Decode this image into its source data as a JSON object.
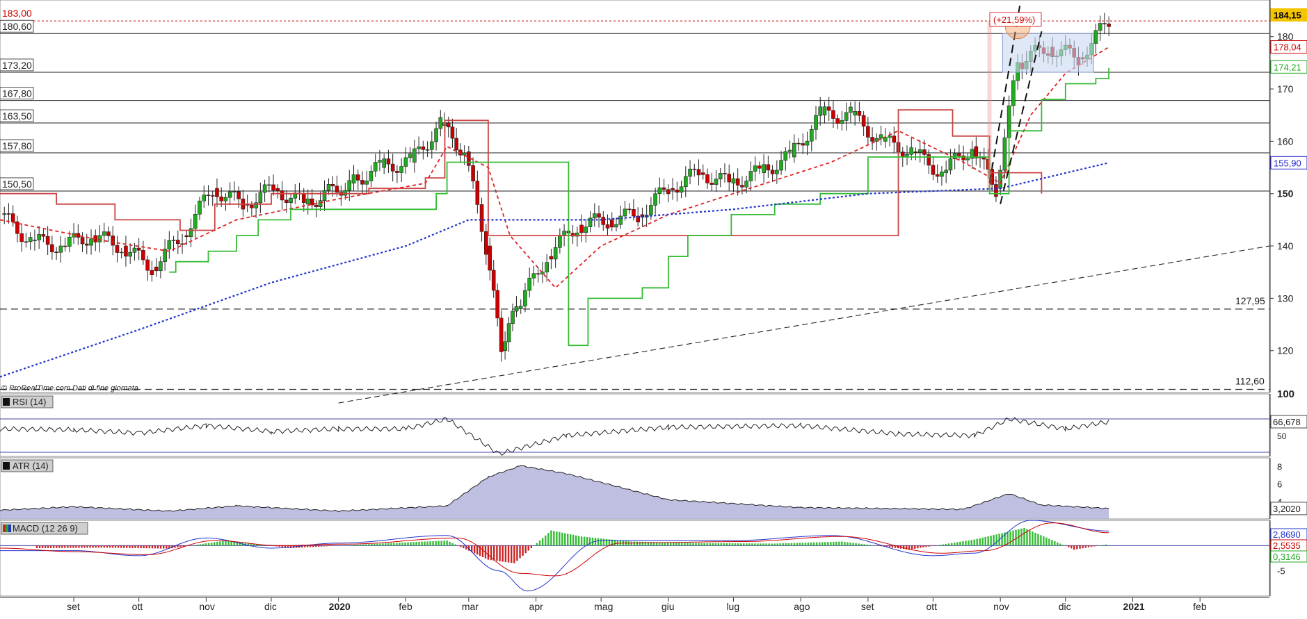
{
  "chart_data": [
    {
      "type": "line",
      "title": "",
      "source_note": "© ProRealTime.com  Dati di fine giornata",
      "ylim": [
        112,
        187
      ],
      "yticks": [
        {
          "value": 180,
          "label": "180"
        },
        {
          "value": 170,
          "label": "170"
        },
        {
          "value": 160,
          "label": "160"
        },
        {
          "value": 150,
          "label": "150",
          "bold": true
        },
        {
          "value": 140,
          "label": "140"
        },
        {
          "value": 130,
          "label": "130"
        },
        {
          "value": 120,
          "label": "120"
        }
      ],
      "xaxis": {
        "range": [
          "2019-07-29",
          "2021-03-05"
        ],
        "ticks": [
          {
            "date": "2019-09-01",
            "label": "set"
          },
          {
            "date": "2019-10-01",
            "label": "ott"
          },
          {
            "date": "2019-11-01",
            "label": "nov"
          },
          {
            "date": "2019-12-01",
            "label": "dic"
          },
          {
            "date": "2020-01-01",
            "label": "2020",
            "bold": true
          },
          {
            "date": "2020-02-01",
            "label": "feb"
          },
          {
            "date": "2020-03-01",
            "label": "mar"
          },
          {
            "date": "2020-04-01",
            "label": "apr"
          },
          {
            "date": "2020-05-01",
            "label": "mag"
          },
          {
            "date": "2020-06-01",
            "label": "giu"
          },
          {
            "date": "2020-07-01",
            "label": "lug"
          },
          {
            "date": "2020-08-01",
            "label": "ago"
          },
          {
            "date": "2020-09-01",
            "label": "set"
          },
          {
            "date": "2020-10-01",
            "label": "ott"
          },
          {
            "date": "2020-11-01",
            "label": "nov"
          },
          {
            "date": "2020-12-01",
            "label": "dic"
          },
          {
            "date": "2021-01-01",
            "label": "2021",
            "bold": true
          },
          {
            "date": "2021-02-01",
            "label": "feb"
          }
        ]
      },
      "horizontal_levels": [
        {
          "value": 180.6,
          "label": "180,60",
          "style": "solid"
        },
        {
          "value": 173.2,
          "label": "173,20",
          "style": "solid"
        },
        {
          "value": 167.8,
          "label": "167,80",
          "style": "solid"
        },
        {
          "value": 163.5,
          "label": "163,50",
          "style": "solid"
        },
        {
          "value": 157.8,
          "label": "157,80",
          "style": "solid"
        },
        {
          "value": 150.5,
          "label": "150,50",
          "style": "solid"
        },
        {
          "value": 183.0,
          "label": "183,00",
          "style": "dotted-red",
          "color": "#cc0000"
        },
        {
          "value": 127.95,
          "label": "127,95",
          "style": "dashed",
          "label_side": "right"
        },
        {
          "value": 112.6,
          "label": "112,60",
          "style": "dashed",
          "label_side": "right"
        }
      ],
      "price_tags": [
        {
          "value": 184.15,
          "label": "184,15",
          "color": "#f5c400",
          "text_color": "#000000"
        },
        {
          "value": 178.04,
          "label": "178,04",
          "color": "#cc0000"
        },
        {
          "value": 174.21,
          "label": "174,21",
          "color": "#22aa22"
        },
        {
          "value": 155.9,
          "label": "155,90",
          "color": "#2222cc"
        }
      ],
      "annotation": {
        "label": "(+21,59%)",
        "color": "#cc0000"
      },
      "series": [
        {
          "style": "candlestick",
          "color_up": "#22aa22",
          "color_down": "#cc0000",
          "x": [
            "2019-07-29",
            "2019-08-12",
            "2019-08-26",
            "2019-09-09",
            "2019-09-23",
            "2019-10-07",
            "2019-10-21",
            "2019-11-04",
            "2019-11-18",
            "2019-12-02",
            "2019-12-16",
            "2020-01-06",
            "2020-01-20",
            "2020-02-03",
            "2020-02-17",
            "2020-02-28",
            "2020-03-09",
            "2020-03-16",
            "2020-03-23",
            "2020-04-06",
            "2020-04-20",
            "2020-05-04",
            "2020-05-18",
            "2020-06-01",
            "2020-06-15",
            "2020-06-29",
            "2020-07-13",
            "2020-07-27",
            "2020-08-10",
            "2020-08-24",
            "2020-09-07",
            "2020-09-21",
            "2020-10-05",
            "2020-10-19",
            "2020-10-30",
            "2020-11-09",
            "2020-11-23",
            "2020-12-07",
            "2020-12-21"
          ],
          "values": [
            146,
            141,
            140,
            142,
            140,
            136,
            142,
            151,
            148,
            151,
            148,
            152,
            155,
            156,
            163,
            158,
            140,
            120,
            128,
            138,
            144,
            145,
            146,
            151,
            154,
            152,
            154,
            157,
            165,
            165,
            160,
            158,
            154,
            159,
            151,
            175,
            178,
            176,
            183
          ]
        },
        {
          "name": "",
          "style": "solid-red",
          "color": "#cc4444",
          "x": [
            "2019-07-29",
            "2019-08-24",
            "2019-09-10",
            "2019-09-20",
            "2019-10-10",
            "2019-10-20",
            "2019-11-05",
            "2019-12-01",
            "2020-01-15",
            "2020-02-10",
            "2020-02-19",
            "2020-03-02",
            "2020-03-10",
            "2020-05-01",
            "2020-06-15",
            "2020-08-20",
            "2020-09-15",
            "2020-09-20",
            "2020-10-10",
            "2020-10-20",
            "2020-10-27",
            "2020-11-05",
            "2020-11-20"
          ],
          "values": [
            150,
            148,
            148,
            145,
            145,
            143,
            148,
            150,
            151,
            153,
            164,
            164,
            142,
            142,
            142,
            142,
            166,
            166,
            161,
            161,
            154,
            154,
            150
          ]
        },
        {
          "name": "",
          "style": "dashed-red",
          "color": "#dd2222",
          "x": [
            "2019-07-29",
            "2019-09-15",
            "2019-10-15",
            "2019-11-15",
            "2020-01-01",
            "2020-02-10",
            "2020-02-20",
            "2020-03-10",
            "2020-03-20",
            "2020-04-10",
            "2020-05-01",
            "2020-06-01",
            "2020-07-01",
            "2020-08-15",
            "2020-09-15",
            "2020-10-15",
            "2020-11-01",
            "2020-11-15",
            "2020-12-01",
            "2020-12-21"
          ],
          "values": [
            145,
            141,
            139,
            145,
            149,
            152,
            159,
            155,
            142,
            132,
            140,
            146,
            150,
            156,
            162,
            156,
            152,
            165,
            173,
            178
          ]
        },
        {
          "name": "",
          "style": "solid-green",
          "color": "#33bb33",
          "x": [
            "2019-10-15",
            "2019-10-18",
            "2019-10-28",
            "2019-11-02",
            "2019-11-15",
            "2019-11-25",
            "2019-12-10",
            "2020-01-15",
            "2020-02-15",
            "2020-02-20",
            "2020-03-10",
            "2020-04-12",
            "2020-04-16",
            "2020-04-25",
            "2020-05-20",
            "2020-06-01",
            "2020-06-10",
            "2020-06-30",
            "2020-07-20",
            "2020-08-10",
            "2020-09-01",
            "2020-10-01",
            "2020-10-27",
            "2020-11-02",
            "2020-11-05",
            "2020-11-20",
            "2020-12-01",
            "2020-12-15",
            "2020-12-21"
          ],
          "values": [
            135,
            137,
            137,
            139,
            142,
            145,
            147,
            147,
            150,
            156,
            156,
            156,
            121,
            130,
            132,
            138,
            142,
            146,
            148,
            150,
            157,
            157,
            150,
            150,
            162,
            168,
            171,
            172,
            174
          ]
        },
        {
          "name": "",
          "style": "dotted-blue",
          "color": "#2233cc",
          "x": [
            "2019-07-29",
            "2019-10-01",
            "2019-12-01",
            "2020-02-01",
            "2020-03-01",
            "2020-05-01",
            "2020-07-01",
            "2020-09-01",
            "2020-11-01",
            "2020-12-21"
          ],
          "values": [
            115,
            124,
            133,
            140,
            145,
            145,
            147,
            150,
            151,
            155.9
          ]
        },
        {
          "name": "",
          "style": "dashed-black",
          "color": "#222222",
          "x": [
            "2020-01-01",
            "2021-03-05"
          ],
          "values": [
            110,
            140
          ]
        }
      ]
    },
    {
      "type": "line",
      "label": "RSI (14)",
      "ylim": [
        25,
        100
      ],
      "yticks": [
        {
          "value": 100,
          "label": "100"
        },
        {
          "value": 50,
          "label": "50"
        }
      ],
      "levels": [
        70,
        30
      ],
      "last_value": {
        "value": 66.678,
        "label": "66,678"
      },
      "series": [
        {
          "name": "",
          "color": "#222222",
          "x": [
            "2019-07-29",
            "2019-09-01",
            "2019-10-01",
            "2019-11-01",
            "2019-12-01",
            "2020-01-01",
            "2020-02-01",
            "2020-02-20",
            "2020-03-15",
            "2020-04-15",
            "2020-06-01",
            "2020-08-01",
            "2020-09-15",
            "2020-10-20",
            "2020-11-05",
            "2020-12-01",
            "2020-12-21"
          ],
          "values": [
            58,
            57,
            53,
            62,
            55,
            58,
            58,
            70,
            28,
            50,
            60,
            62,
            52,
            50,
            70,
            58,
            66.678
          ]
        }
      ]
    },
    {
      "type": "area",
      "label": "ATR (14)",
      "ylim": [
        2,
        9
      ],
      "yticks": [
        {
          "value": 8,
          "label": "8"
        },
        {
          "value": 6,
          "label": "6"
        },
        {
          "value": 4,
          "label": "4"
        }
      ],
      "last_value": {
        "value": 3.202,
        "label": "3,2020"
      },
      "series": [
        {
          "name": "",
          "color": "#222222",
          "fill": "#b4b4dc",
          "x": [
            "2019-07-29",
            "2019-09-01",
            "2019-10-15",
            "2019-11-15",
            "2020-01-01",
            "2020-02-20",
            "2020-03-10",
            "2020-03-25",
            "2020-04-15",
            "2020-06-01",
            "2020-08-01",
            "2020-10-15",
            "2020-11-05",
            "2020-11-20",
            "2020-12-21"
          ],
          "values": [
            3.0,
            3.4,
            2.9,
            3.5,
            2.9,
            3.5,
            6.8,
            8.1,
            7.2,
            4.2,
            3.3,
            3.1,
            4.9,
            3.6,
            3.2
          ]
        }
      ]
    },
    {
      "type": "bar",
      "label": "MACD (12 26 9)",
      "ylim": [
        -10,
        5
      ],
      "yticks": [
        {
          "value": -5,
          "label": "-5"
        }
      ],
      "last_values": [
        {
          "value": 2.869,
          "label": "2,8690",
          "color": "#2233cc"
        },
        {
          "value": 2.5535,
          "label": "2,5535",
          "color": "#cc0000"
        },
        {
          "value": 0.3146,
          "label": "0,3146",
          "color": "#22aa22"
        }
      ],
      "series": [
        {
          "name": "",
          "color": "#2233cc",
          "x": [
            "2019-07-29",
            "2019-09-01",
            "2019-10-01",
            "2019-11-01",
            "2019-12-01",
            "2020-01-01",
            "2020-02-20",
            "2020-03-15",
            "2020-03-28",
            "2020-05-01",
            "2020-07-01",
            "2020-08-15",
            "2020-10-01",
            "2020-10-20",
            "2020-11-15",
            "2020-12-21"
          ],
          "values": [
            -1,
            -1,
            -2,
            1.5,
            -0.5,
            0.5,
            2,
            -5,
            -9,
            1,
            1,
            2,
            -2,
            -1.5,
            5,
            2.9
          ]
        },
        {
          "name": "",
          "color": "#cc0000",
          "x": [
            "2019-07-29",
            "2019-09-01",
            "2019-10-05",
            "2019-11-05",
            "2019-12-05",
            "2020-01-05",
            "2020-02-25",
            "2020-03-25",
            "2020-04-10",
            "2020-05-10",
            "2020-07-05",
            "2020-08-20",
            "2020-10-05",
            "2020-10-25",
            "2020-11-25",
            "2020-12-21"
          ],
          "values": [
            -0.5,
            -1.2,
            -1.8,
            1,
            0,
            0.3,
            1.5,
            -5.5,
            -6,
            0.5,
            0.8,
            1.8,
            -1.5,
            -1,
            4.5,
            2.55
          ]
        },
        {
          "name": "",
          "style": "histogram",
          "x": [
            "2019-08-15",
            "2019-09-15",
            "2019-10-15",
            "2019-11-10",
            "2019-12-10",
            "2020-01-15",
            "2020-02-20",
            "2020-03-10",
            "2020-03-22",
            "2020-04-08",
            "2020-04-22",
            "2020-05-15",
            "2020-06-15",
            "2020-07-20",
            "2020-08-20",
            "2020-09-20",
            "2020-10-20",
            "2020-11-12",
            "2020-12-05",
            "2020-12-21"
          ],
          "values": [
            -0.5,
            -0.4,
            -0.6,
            1.0,
            -0.5,
            0.3,
            1.0,
            -2.8,
            -3.5,
            3.0,
            1.8,
            0.8,
            0.5,
            0.4,
            0.8,
            -0.8,
            1.2,
            3.5,
            -0.8,
            0.3
          ]
        }
      ]
    }
  ]
}
